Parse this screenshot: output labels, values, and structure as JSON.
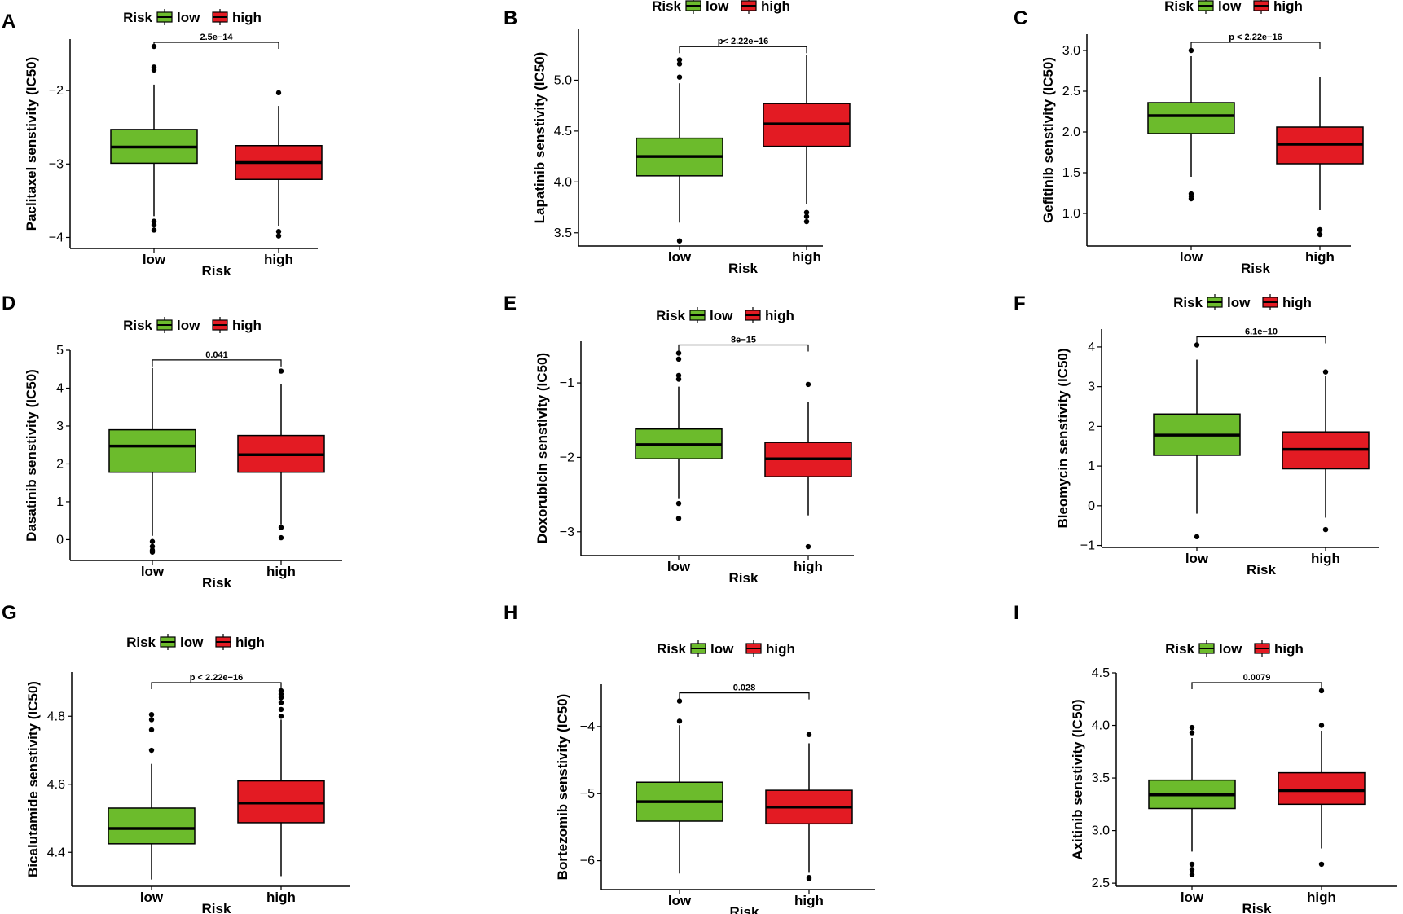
{
  "colors": {
    "low": "#6cbb2c",
    "high": "#e31b23",
    "median": "#000000"
  },
  "chart_data": [
    {
      "type": "box",
      "panel": "A",
      "title": "",
      "xlabel": "Risk",
      "ylabel": "Paclitaxel senstivity (IC50)",
      "legend_title": "Risk",
      "legend_labels": [
        "low",
        "high"
      ],
      "categories": [
        "low",
        "high"
      ],
      "ylim": [
        -4.15,
        -1.3
      ],
      "yticks": [
        -4,
        -3,
        -2
      ],
      "ytick_labels": [
        "−4",
        "−3",
        "−2"
      ],
      "pvalue": "2.5e−14",
      "boxes": [
        {
          "name": "low",
          "q1": -2.99,
          "median": -2.77,
          "q3": -2.53,
          "whisker_low": -3.71,
          "whisker_high": -1.92,
          "outliers": [
            -3.78,
            -3.83,
            -3.9,
            -1.68,
            -1.72,
            -1.4
          ]
        },
        {
          "name": "high",
          "q1": -3.21,
          "median": -2.98,
          "q3": -2.75,
          "whisker_low": -3.85,
          "whisker_high": -2.21,
          "outliers": [
            -3.92,
            -3.98,
            -2.03
          ]
        }
      ]
    },
    {
      "type": "box",
      "panel": "B",
      "title": "",
      "xlabel": "Risk",
      "ylabel": "Lapatinib senstivity (IC50)",
      "legend_title": "Risk",
      "legend_labels": [
        "low",
        "high"
      ],
      "categories": [
        "low",
        "high"
      ],
      "ylim": [
        3.37,
        5.5
      ],
      "yticks": [
        3.5,
        4.0,
        4.5,
        5.0
      ],
      "ytick_labels": [
        "3.5",
        "4.0",
        "4.5",
        "5.0"
      ],
      "pvalue": "p< 2.22e−16",
      "boxes": [
        {
          "name": "low",
          "q1": 4.06,
          "median": 4.25,
          "q3": 4.43,
          "whisker_low": 3.6,
          "whisker_high": 4.97,
          "outliers": [
            3.42,
            5.03,
            5.16,
            5.2
          ]
        },
        {
          "name": "high",
          "q1": 4.35,
          "median": 4.57,
          "q3": 4.77,
          "whisker_low": 3.78,
          "whisker_high": 5.25,
          "outliers": [
            3.61,
            3.66,
            3.7
          ]
        }
      ]
    },
    {
      "type": "box",
      "panel": "C",
      "title": "",
      "xlabel": "Risk",
      "ylabel": "Gefitinib senstivity (IC50)",
      "legend_title": "Risk",
      "legend_labels": [
        "low",
        "high"
      ],
      "categories": [
        "low",
        "high"
      ],
      "ylim": [
        0.6,
        3.2
      ],
      "yticks": [
        1.0,
        1.5,
        2.0,
        2.5,
        3.0
      ],
      "ytick_labels": [
        "1.0",
        "1.5",
        "2.0",
        "2.5",
        "3.0"
      ],
      "pvalue": "p < 2.22e−16",
      "boxes": [
        {
          "name": "low",
          "q1": 1.98,
          "median": 2.2,
          "q3": 2.36,
          "whisker_low": 1.45,
          "whisker_high": 2.93,
          "outliers": [
            1.18,
            1.21,
            1.24,
            3.0
          ]
        },
        {
          "name": "high",
          "q1": 1.61,
          "median": 1.85,
          "q3": 2.06,
          "whisker_low": 1.04,
          "whisker_high": 2.68,
          "outliers": [
            0.74,
            0.8
          ]
        }
      ]
    },
    {
      "type": "box",
      "panel": "D",
      "title": "",
      "xlabel": "Risk",
      "ylabel": "Dasatinib senstivity (IC50)",
      "legend_title": "Risk",
      "legend_labels": [
        "low",
        "high"
      ],
      "categories": [
        "low",
        "high"
      ],
      "ylim": [
        -0.55,
        5.0
      ],
      "yticks": [
        0,
        1,
        2,
        3,
        4,
        5
      ],
      "ytick_labels": [
        "0",
        "1",
        "2",
        "3",
        "4",
        "5"
      ],
      "pvalue": "0.041",
      "boxes": [
        {
          "name": "low",
          "q1": 1.78,
          "median": 2.47,
          "q3": 2.9,
          "whisker_low": 0.1,
          "whisker_high": 4.53,
          "outliers": [
            -0.05,
            -0.18,
            -0.28,
            -0.33
          ]
        },
        {
          "name": "high",
          "q1": 1.78,
          "median": 2.24,
          "q3": 2.75,
          "whisker_low": 0.4,
          "whisker_high": 4.1,
          "outliers": [
            0.05,
            0.32,
            4.45
          ]
        }
      ]
    },
    {
      "type": "box",
      "panel": "E",
      "title": "",
      "xlabel": "Risk",
      "ylabel": "Doxorubicin senstivity (IC50)",
      "legend_title": "Risk",
      "legend_labels": [
        "low",
        "high"
      ],
      "categories": [
        "low",
        "high"
      ],
      "ylim": [
        -3.32,
        -0.43
      ],
      "yticks": [
        -3,
        -2,
        -1
      ],
      "ytick_labels": [
        "−3",
        "−2",
        "−1"
      ],
      "pvalue": "8e−15",
      "boxes": [
        {
          "name": "low",
          "q1": -2.02,
          "median": -1.83,
          "q3": -1.62,
          "whisker_low": -2.55,
          "whisker_high": -1.05,
          "outliers": [
            -2.62,
            -2.82,
            -0.9,
            -0.95,
            -0.68,
            -0.6
          ]
        },
        {
          "name": "high",
          "q1": -2.26,
          "median": -2.02,
          "q3": -1.8,
          "whisker_low": -2.78,
          "whisker_high": -1.26,
          "outliers": [
            -3.2,
            -1.02
          ]
        }
      ]
    },
    {
      "type": "box",
      "panel": "F",
      "title": "",
      "xlabel": "Risk",
      "ylabel": "Bleomycin senstivity (IC50)",
      "legend_title": "Risk",
      "legend_labels": [
        "low",
        "high"
      ],
      "categories": [
        "low",
        "high"
      ],
      "ylim": [
        -1.05,
        4.45
      ],
      "yticks": [
        -1,
        0,
        1,
        2,
        3,
        4
      ],
      "ytick_labels": [
        "−1",
        "0",
        "1",
        "2",
        "3",
        "4"
      ],
      "pvalue": "6.1e−10",
      "boxes": [
        {
          "name": "low",
          "q1": 1.27,
          "median": 1.78,
          "q3": 2.31,
          "whisker_low": -0.2,
          "whisker_high": 3.68,
          "outliers": [
            -0.78,
            4.05
          ]
        },
        {
          "name": "high",
          "q1": 0.93,
          "median": 1.42,
          "q3": 1.86,
          "whisker_low": -0.3,
          "whisker_high": 3.28,
          "outliers": [
            -0.6,
            3.37
          ]
        }
      ]
    },
    {
      "type": "box",
      "panel": "G",
      "title": "",
      "xlabel": "Risk",
      "ylabel": "Bicalutamide senstivity (IC50)",
      "legend_title": "Risk",
      "legend_labels": [
        "low",
        "high"
      ],
      "categories": [
        "low",
        "high"
      ],
      "ylim": [
        4.3,
        4.93
      ],
      "yticks": [
        4.4,
        4.6,
        4.8
      ],
      "ytick_labels": [
        "4.4",
        "4.6",
        "4.8"
      ],
      "pvalue": "p < 2.22e−16",
      "boxes": [
        {
          "name": "low",
          "q1": 4.425,
          "median": 4.47,
          "q3": 4.53,
          "whisker_low": 4.32,
          "whisker_high": 4.66,
          "outliers": [
            4.7,
            4.76,
            4.79,
            4.805
          ]
        },
        {
          "name": "high",
          "q1": 4.487,
          "median": 4.545,
          "q3": 4.61,
          "whisker_low": 4.33,
          "whisker_high": 4.79,
          "outliers": [
            4.8,
            4.82,
            4.84,
            4.855,
            4.865,
            4.875
          ]
        }
      ]
    },
    {
      "type": "box",
      "panel": "H",
      "title": "",
      "xlabel": "Risk",
      "ylabel": "Bortezomib senstivity (IC50)",
      "legend_title": "Risk",
      "legend_labels": [
        "low",
        "high"
      ],
      "categories": [
        "low",
        "high"
      ],
      "ylim": [
        -6.43,
        -3.37
      ],
      "yticks": [
        -6,
        -5,
        -4
      ],
      "ytick_labels": [
        "−6",
        "−5",
        "−4"
      ],
      "pvalue": "0.028",
      "boxes": [
        {
          "name": "low",
          "q1": -5.41,
          "median": -5.12,
          "q3": -4.83,
          "whisker_low": -6.19,
          "whisker_high": -3.98,
          "outliers": [
            -3.62,
            -3.92
          ]
        },
        {
          "name": "high",
          "q1": -5.45,
          "median": -5.2,
          "q3": -4.95,
          "whisker_low": -6.18,
          "whisker_high": -4.25,
          "outliers": [
            -6.25,
            -6.27,
            -4.12
          ]
        }
      ]
    },
    {
      "type": "box",
      "panel": "I",
      "title": "",
      "xlabel": "Risk",
      "ylabel": "Axitinib senstivity (IC50)",
      "legend_title": "Risk",
      "legend_labels": [
        "low",
        "high"
      ],
      "categories": [
        "low",
        "high"
      ],
      "ylim": [
        2.47,
        4.5
      ],
      "yticks": [
        2.5,
        3.0,
        3.5,
        4.0,
        4.5
      ],
      "ytick_labels": [
        "2.5",
        "3.0",
        "3.5",
        "4.0",
        "4.5"
      ],
      "pvalue": "0.0079",
      "boxes": [
        {
          "name": "low",
          "q1": 3.21,
          "median": 3.34,
          "q3": 3.48,
          "whisker_low": 2.8,
          "whisker_high": 3.88,
          "outliers": [
            2.58,
            2.63,
            2.68,
            3.93,
            3.98
          ]
        },
        {
          "name": "high",
          "q1": 3.25,
          "median": 3.38,
          "q3": 3.55,
          "whisker_low": 2.83,
          "whisker_high": 3.95,
          "outliers": [
            2.68,
            4.0,
            4.33
          ]
        }
      ]
    }
  ]
}
